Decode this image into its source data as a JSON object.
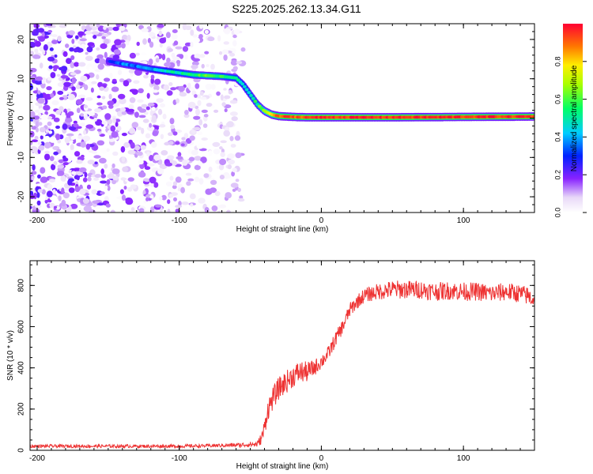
{
  "title": "S225.2025.262.13.34.G11",
  "chart_data": [
    {
      "type": "heatmap",
      "xlabel": "Height of straight line (km)",
      "ylabel": "Frequency (Hz)",
      "xlim": [
        -205,
        150
      ],
      "ylim": [
        -24,
        24
      ],
      "xticks": [
        -200,
        -100,
        0,
        100
      ],
      "yticks": [
        20,
        10,
        0,
        -10,
        -20
      ],
      "colorbar": {
        "label": "Normalized spectral amplitude",
        "range": [
          0,
          1
        ],
        "ticks": [
          0,
          0.2,
          0.4,
          0.6,
          0.8
        ],
        "tick_labels": [
          "0.0",
          "0.2",
          "0.4",
          "0.6",
          "0.8"
        ]
      },
      "signal_track": {
        "x": [
          -150,
          -140,
          -130,
          -120,
          -110,
          -100,
          -90,
          -80,
          -70,
          -60,
          -55,
          -50,
          -45,
          -40,
          -35,
          -30,
          -20,
          -10,
          0,
          50,
          100,
          150
        ],
        "freq": [
          14.5,
          13.8,
          13.2,
          12.5,
          12,
          11.5,
          11,
          10.8,
          10.6,
          10.2,
          8.5,
          6,
          3.5,
          1.8,
          0.9,
          0.5,
          0.3,
          0.2,
          0.2,
          0.2,
          0.3,
          0.4
        ],
        "amplitude": [
          0.25,
          0.35,
          0.35,
          0.4,
          0.45,
          0.5,
          0.55,
          0.6,
          0.55,
          0.5,
          0.45,
          0.5,
          0.55,
          0.65,
          0.8,
          0.9,
          0.92,
          0.93,
          0.95,
          0.95,
          0.95,
          0.95
        ]
      },
      "noise_region": {
        "x_range": [
          -205,
          -55
        ],
        "freq_range": [
          -24,
          24
        ],
        "amplitude_range": [
          0,
          0.25
        ]
      }
    },
    {
      "type": "line",
      "xlabel": "Height of straight line (km)",
      "ylabel": "SNR (10 * v/v)",
      "xlim": [
        -205,
        150
      ],
      "ylim": [
        0,
        920
      ],
      "xticks": [
        -200,
        -100,
        0,
        100
      ],
      "yticks": [
        0,
        200,
        400,
        600,
        800
      ],
      "color": "#ee3333",
      "series": [
        {
          "name": "SNR",
          "x": [
            -205,
            -180,
            -160,
            -140,
            -120,
            -100,
            -80,
            -60,
            -45,
            -42,
            -40,
            -38,
            -35,
            -30,
            -25,
            -20,
            -15,
            -10,
            -5,
            0,
            5,
            10,
            15,
            20,
            25,
            30,
            40,
            50,
            60,
            70,
            80,
            90,
            100,
            110,
            120,
            130,
            140,
            145,
            150
          ],
          "y": [
            20,
            20,
            20,
            20,
            20,
            20,
            22,
            25,
            30,
            60,
            110,
            190,
            240,
            300,
            330,
            360,
            380,
            380,
            400,
            430,
            470,
            540,
            600,
            680,
            720,
            750,
            770,
            780,
            780,
            780,
            770,
            775,
            770,
            770,
            760,
            770,
            760,
            750,
            730
          ],
          "noise_amplitude": [
            8,
            8,
            8,
            8,
            8,
            8,
            8,
            10,
            15,
            30,
            45,
            50,
            55,
            55,
            55,
            55,
            55,
            50,
            40,
            35,
            35,
            35,
            35,
            35,
            35,
            35,
            40,
            45,
            45,
            45,
            45,
            45,
            45,
            45,
            45,
            45,
            45,
            45,
            45
          ]
        }
      ]
    }
  ]
}
